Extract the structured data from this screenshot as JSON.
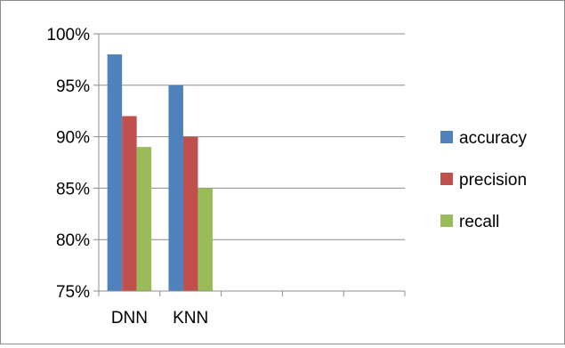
{
  "chart_data": {
    "type": "bar",
    "categories": [
      "DNN",
      "KNN",
      "",
      "",
      ""
    ],
    "series": [
      {
        "name": "accuracy",
        "color": "#4f81bd",
        "values": [
          98,
          95,
          null,
          null,
          null
        ]
      },
      {
        "name": "precision",
        "color": "#c0504d",
        "values": [
          92,
          90,
          null,
          null,
          null
        ]
      },
      {
        "name": "recall",
        "color": "#9bbb59",
        "values": [
          89,
          85,
          null,
          null,
          null
        ]
      }
    ],
    "title": "",
    "xlabel": "",
    "ylabel": "",
    "ylim": [
      75,
      100
    ],
    "yticks": [
      75,
      80,
      85,
      90,
      95,
      100
    ],
    "ytick_labels": [
      "75%",
      "80%",
      "85%",
      "90%",
      "95%",
      "100%"
    ],
    "grid": true,
    "legend_position": "right"
  }
}
